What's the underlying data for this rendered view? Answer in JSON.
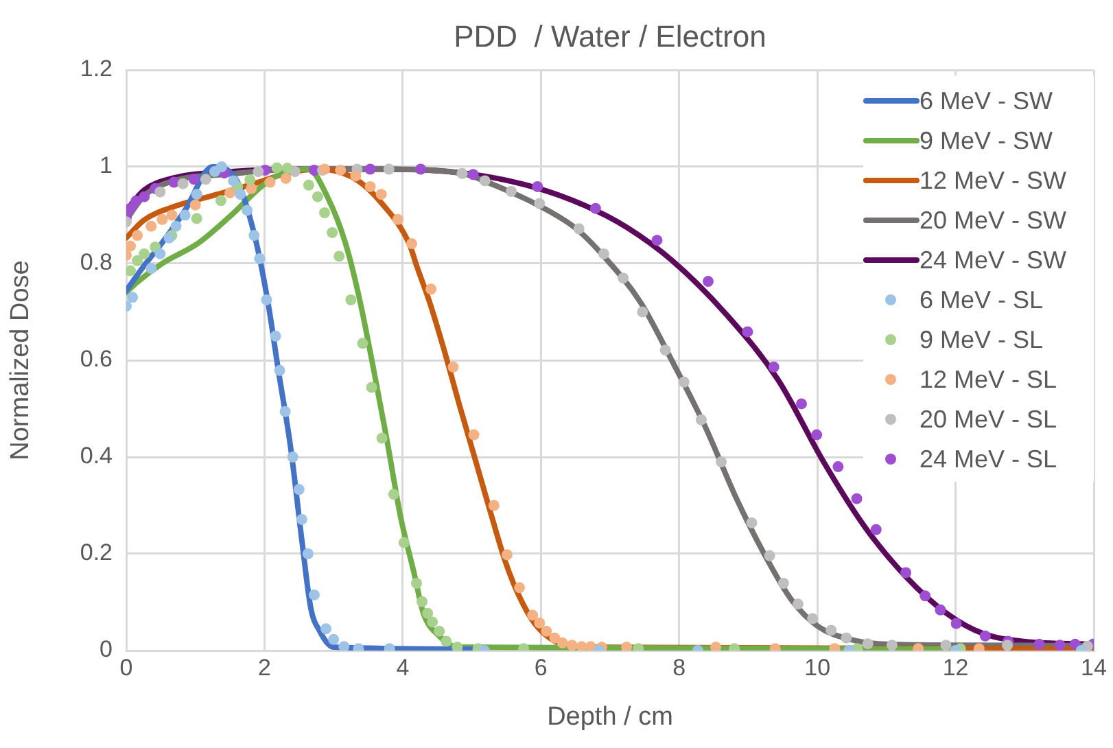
{
  "chart_data": {
    "type": "line",
    "title": "PDD  / Water / Electron",
    "xlabel": "Depth / cm",
    "ylabel": "Normalized Dose",
    "xlim": [
      0,
      14
    ],
    "xticks": [
      0,
      2,
      4,
      6,
      8,
      10,
      12,
      14
    ],
    "ylim": [
      0,
      1.2
    ],
    "yticks": [
      0,
      0.2,
      0.4,
      0.6,
      0.8,
      1,
      1.2
    ],
    "grid": true,
    "legend": "top right",
    "series": [
      {
        "name": "6 MeV - SW",
        "type": "line",
        "color": "#4472c4",
        "x": [
          0,
          0.26,
          0.52,
          0.85,
          1.25,
          1.58,
          1.85,
          2.05,
          2.2,
          2.38,
          2.54,
          2.67,
          2.8,
          3.0,
          5.0
        ],
        "values": [
          0.744,
          0.796,
          0.843,
          0.91,
          1.0,
          0.976,
          0.862,
          0.72,
          0.58,
          0.418,
          0.229,
          0.088,
          0.04,
          0.007,
          0.003
        ]
      },
      {
        "name": "9 MeV - SW",
        "type": "line",
        "color": "#70ad47",
        "x": [
          0,
          0.13,
          0.52,
          1.05,
          1.52,
          1.98,
          2.31,
          2.64,
          2.91,
          3.17,
          3.37,
          3.57,
          3.77,
          3.97,
          4.16,
          4.3,
          4.53,
          4.79,
          12.07
        ],
        "values": [
          0.74,
          0.758,
          0.8,
          0.843,
          0.9,
          0.962,
          0.99,
          0.995,
          0.938,
          0.843,
          0.73,
          0.588,
          0.437,
          0.276,
          0.163,
          0.077,
          0.03,
          0.007,
          0.003
        ]
      },
      {
        "name": "12 MeV - SW",
        "type": "line",
        "color": "#c55a11",
        "x": [
          0,
          0.26,
          0.72,
          1.32,
          1.85,
          2.31,
          2.77,
          3.3,
          3.7,
          4.1,
          4.2,
          4.39,
          4.59,
          4.83,
          5.06,
          5.29,
          5.49,
          5.69,
          5.92,
          6.18,
          6.51,
          14
        ],
        "values": [
          0.853,
          0.89,
          0.919,
          0.943,
          0.965,
          0.986,
          0.995,
          0.976,
          0.924,
          0.839,
          0.796,
          0.72,
          0.626,
          0.503,
          0.39,
          0.276,
          0.182,
          0.111,
          0.054,
          0.021,
          0.007,
          0.003
        ]
      },
      {
        "name": "20 MeV - SW",
        "type": "line",
        "color": "#767171",
        "x": [
          0,
          0.26,
          0.66,
          1.5,
          2.5,
          3.73,
          4.86,
          5.26,
          5.98,
          6.51,
          6.91,
          7.44,
          7.9,
          8.37,
          8.83,
          9.23,
          9.62,
          10.02,
          10.48,
          11.01,
          12.2,
          14
        ],
        "values": [
          0.89,
          0.94,
          0.97,
          0.985,
          0.995,
          0.995,
          0.986,
          0.966,
          0.919,
          0.872,
          0.815,
          0.72,
          0.598,
          0.465,
          0.314,
          0.2,
          0.106,
          0.049,
          0.023,
          0.013,
          0.011,
          0.01
        ]
      },
      {
        "name": "24 MeV - SW",
        "type": "line",
        "color": "#5b0a5b",
        "x": [
          0,
          0.26,
          0.66,
          1.52,
          2.51,
          3.73,
          4.93,
          5.92,
          6.65,
          7.24,
          7.9,
          8.7,
          9.43,
          10.09,
          10.68,
          11.28,
          11.87,
          12.4,
          12.99,
          14
        ],
        "values": [
          0.91,
          0.952,
          0.976,
          0.99,
          0.995,
          0.995,
          0.986,
          0.957,
          0.919,
          0.875,
          0.806,
          0.692,
          0.56,
          0.39,
          0.257,
          0.153,
          0.077,
          0.035,
          0.019,
          0.013
        ]
      },
      {
        "name": "6 MeV - SL",
        "type": "scatter",
        "color": "#9dc3e6",
        "x": [
          0,
          0.09,
          0.36,
          0.49,
          0.62,
          0.72,
          0.85,
          1.02,
          1.28,
          1.38,
          1.55,
          1.65,
          1.75,
          1.85,
          1.93,
          2.03,
          2.16,
          2.22,
          2.3,
          2.41,
          2.5,
          2.54,
          2.63,
          2.72,
          2.89,
          3.0,
          3.15,
          3.36,
          3.81,
          5.18,
          6.84,
          8.27,
          10.46,
          12.0,
          13.82
        ],
        "values": [
          0.712,
          0.73,
          0.79,
          0.82,
          0.853,
          0.877,
          0.9,
          0.943,
          0.99,
          1.0,
          0.971,
          0.943,
          0.91,
          0.858,
          0.81,
          0.725,
          0.65,
          0.579,
          0.494,
          0.4,
          0.333,
          0.271,
          0.2,
          0.115,
          0.045,
          0.023,
          0.008,
          0.004,
          0.004,
          0,
          0,
          0,
          0,
          0,
          0
        ]
      },
      {
        "name": "9 MeV - SL",
        "type": "scatter",
        "color": "#a9d18e",
        "x": [
          0.06,
          0.16,
          0.26,
          0.42,
          0.66,
          1.02,
          1.37,
          1.61,
          1.79,
          2.18,
          2.33,
          2.64,
          2.77,
          2.87,
          2.98,
          3.08,
          3.25,
          3.42,
          3.55,
          3.7,
          3.87,
          4.02,
          4.2,
          4.28,
          4.36,
          4.43,
          4.53,
          4.63,
          4.79,
          5.09,
          5.75,
          7.41,
          8.8,
          10.58,
          12.07
        ],
        "values": [
          0.785,
          0.806,
          0.82,
          0.834,
          0.858,
          0.893,
          0.93,
          0.959,
          0.973,
          0.998,
          0.997,
          0.962,
          0.938,
          0.905,
          0.864,
          0.815,
          0.725,
          0.635,
          0.544,
          0.439,
          0.323,
          0.223,
          0.139,
          0.101,
          0.077,
          0.059,
          0.04,
          0.019,
          0.007,
          0.004,
          0.004,
          0.004,
          0.004,
          0.004,
          0.004
        ]
      },
      {
        "name": "12 MeV - SL",
        "type": "scatter",
        "color": "#f4b183",
        "x": [
          0,
          0.06,
          0.16,
          0.36,
          0.52,
          0.66,
          1.0,
          1.5,
          1.81,
          2.08,
          2.31,
          2.87,
          3.1,
          3.32,
          3.53,
          3.69,
          3.93,
          4.13,
          4.41,
          4.73,
          5.03,
          5.32,
          5.51,
          5.69,
          5.88,
          5.98,
          6.08,
          6.2,
          6.31,
          6.45,
          6.59,
          6.72,
          6.88,
          7.24,
          8.53,
          9.39,
          10.25,
          11.46,
          12.34
        ],
        "values": [
          0.817,
          0.836,
          0.858,
          0.877,
          0.891,
          0.9,
          0.921,
          0.946,
          0.955,
          0.968,
          0.976,
          0.995,
          0.993,
          0.981,
          0.959,
          0.943,
          0.891,
          0.841,
          0.747,
          0.586,
          0.446,
          0.3,
          0.198,
          0.13,
          0.073,
          0.057,
          0.04,
          0.026,
          0.016,
          0.011,
          0.008,
          0.008,
          0.007,
          0.007,
          0.007,
          0.004,
          0.004,
          0.004,
          0.004
        ]
      },
      {
        "name": "20 MeV - SL",
        "type": "scatter",
        "color": "#bfbfbf",
        "x": [
          0,
          0.49,
          0.82,
          1.15,
          1.91,
          2.44,
          2.84,
          3.34,
          3.8,
          4.86,
          5.19,
          5.57,
          5.98,
          6.55,
          6.91,
          7.19,
          7.47,
          7.8,
          8.07,
          8.32,
          8.61,
          9.05,
          9.31,
          9.51,
          9.72,
          9.93,
          10.2,
          10.42,
          10.73,
          11.08,
          11.86,
          12.75,
          13.91
        ],
        "values": [
          0.886,
          0.948,
          0.965,
          0.974,
          0.99,
          0.99,
          0.993,
          0.995,
          0.995,
          0.986,
          0.971,
          0.949,
          0.924,
          0.872,
          0.82,
          0.77,
          0.7,
          0.621,
          0.555,
          0.477,
          0.39,
          0.264,
          0.196,
          0.139,
          0.096,
          0.066,
          0.042,
          0.026,
          0.014,
          0.011,
          0.011,
          0.011,
          0.009
        ]
      },
      {
        "name": "24 MeV - SL",
        "type": "scatter",
        "color": "#9e4fd1",
        "x": [
          0,
          0.06,
          0.14,
          0.26,
          0.42,
          0.69,
          0.98,
          1.42,
          2.01,
          2.72,
          3.53,
          4.26,
          5.02,
          5.95,
          6.79,
          7.68,
          8.42,
          8.99,
          9.37,
          9.77,
          9.99,
          10.3,
          10.57,
          10.85,
          11.28,
          11.56,
          11.78,
          12.01,
          12.43,
          12.76,
          13.21,
          13.51,
          13.73,
          13.99
        ],
        "values": [
          0.895,
          0.914,
          0.929,
          0.938,
          0.955,
          0.968,
          0.974,
          0.987,
          0.993,
          0.993,
          0.995,
          0.995,
          0.984,
          0.959,
          0.914,
          0.848,
          0.763,
          0.659,
          0.586,
          0.51,
          0.446,
          0.38,
          0.314,
          0.25,
          0.161,
          0.113,
          0.084,
          0.056,
          0.03,
          0.019,
          0.013,
          0.011,
          0.013,
          0.013
        ]
      }
    ]
  }
}
